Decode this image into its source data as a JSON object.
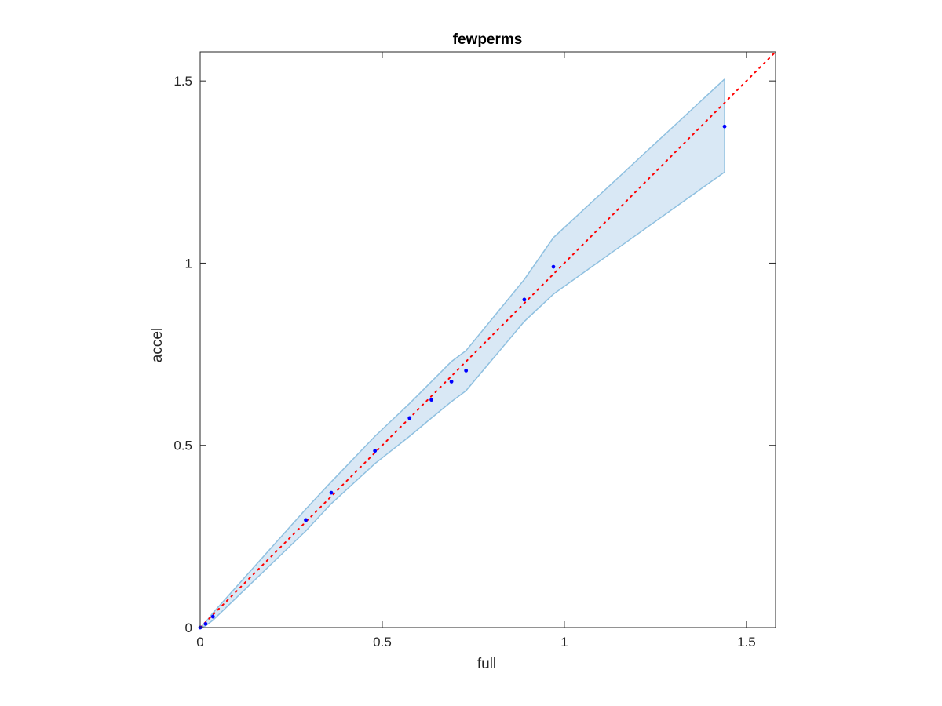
{
  "chart_data": {
    "type": "scatter",
    "title": "fewperms",
    "xlabel": "full",
    "ylabel": "accel",
    "xlim": [
      0,
      1.58
    ],
    "ylim": [
      0,
      1.58
    ],
    "xticks": [
      0,
      0.5,
      1,
      1.5
    ],
    "yticks": [
      0,
      0.5,
      1,
      1.5
    ],
    "xtick_labels": [
      "0",
      "0.5",
      "1",
      "1.5"
    ],
    "ytick_labels": [
      "0",
      "0.5",
      "1",
      "1.5"
    ],
    "grid": false,
    "series": [
      {
        "type": "scatter",
        "x": [
          0.0,
          0.015,
          0.035,
          0.29,
          0.36,
          0.48,
          0.575,
          0.635,
          0.69,
          0.73,
          0.89,
          0.97,
          1.44
        ],
        "y": [
          0.0,
          0.01,
          0.03,
          0.295,
          0.37,
          0.485,
          0.575,
          0.625,
          0.675,
          0.705,
          0.9,
          0.99,
          1.375
        ],
        "color": "#0000ff"
      },
      {
        "type": "band",
        "x": [
          0.0,
          0.015,
          0.035,
          0.29,
          0.36,
          0.48,
          0.575,
          0.635,
          0.69,
          0.73,
          0.89,
          0.97,
          1.44
        ],
        "lower": [
          0.0,
          0.005,
          0.02,
          0.265,
          0.34,
          0.45,
          0.525,
          0.575,
          0.62,
          0.65,
          0.84,
          0.915,
          1.25
        ],
        "upper": [
          0.0,
          0.015,
          0.04,
          0.325,
          0.4,
          0.525,
          0.615,
          0.675,
          0.73,
          0.76,
          0.955,
          1.07,
          1.505
        ],
        "fill_color": "#d9e8f5",
        "line_color": "#8fc0e0"
      },
      {
        "type": "reference-line",
        "x": [
          0,
          1.58
        ],
        "y": [
          0,
          1.58
        ],
        "color": "#ff0000",
        "style": "dotted"
      }
    ]
  }
}
